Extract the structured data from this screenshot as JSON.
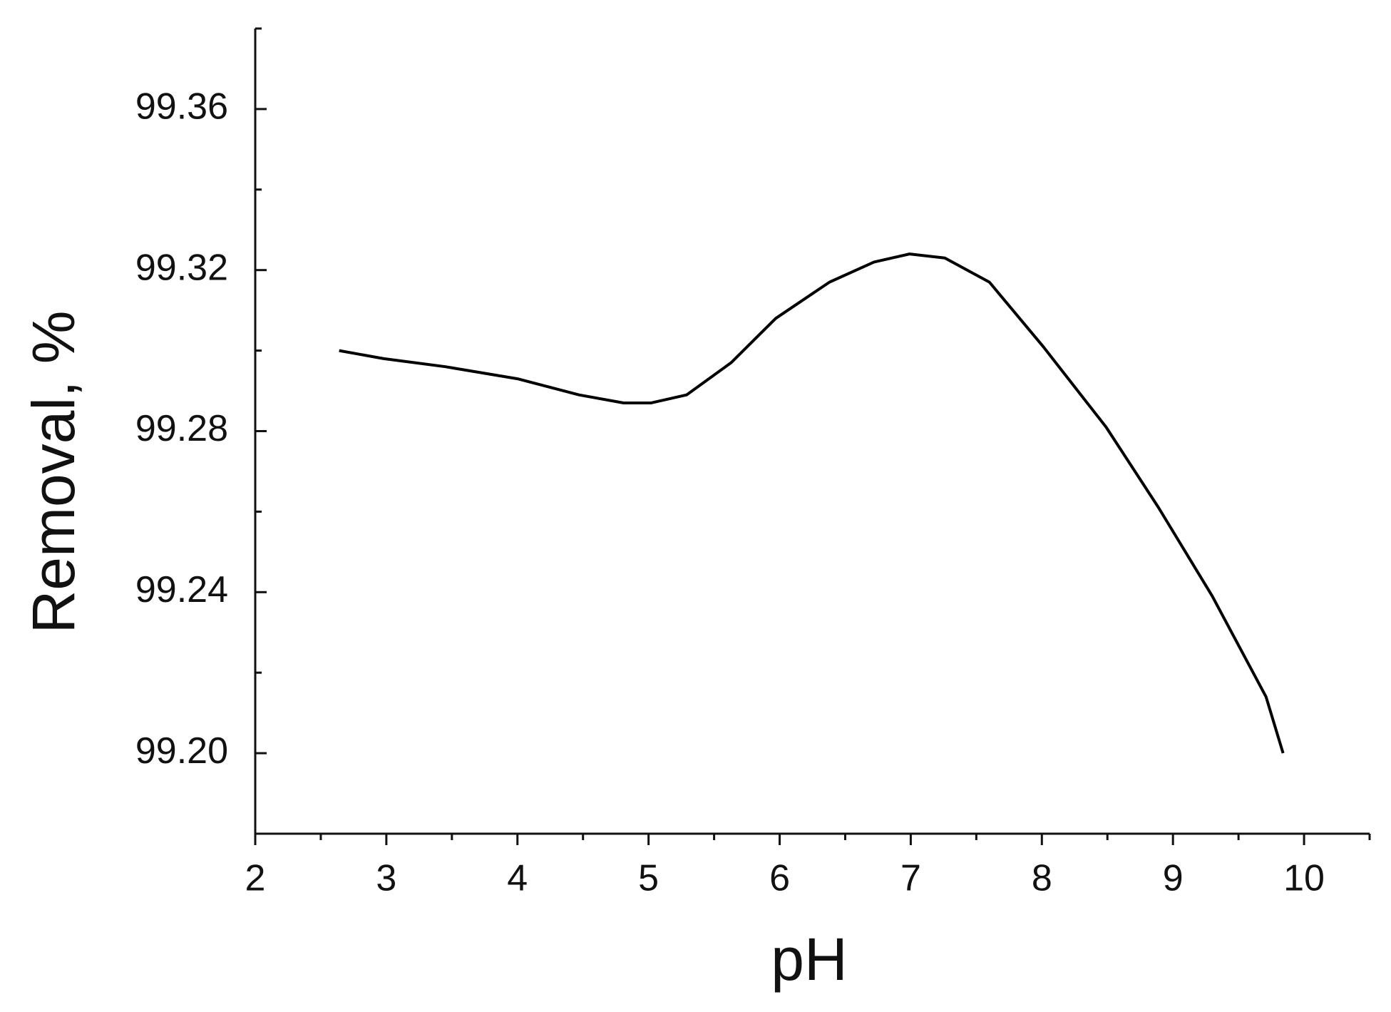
{
  "chart_data": {
    "type": "line",
    "x_label": "pH",
    "y_label": "Removal, %",
    "xlim": [
      2,
      10.5
    ],
    "ylim": [
      99.18,
      99.38
    ],
    "xticks": [
      2,
      3,
      4,
      5,
      6,
      7,
      8,
      9,
      10
    ],
    "yticks": [
      {
        "value": 99.2,
        "label": "99.20"
      },
      99.24,
      99.28,
      99.32,
      99.36
    ],
    "xminorticks": [
      2.5,
      3.5,
      4.5,
      5.5,
      6.5,
      7.5,
      8.5,
      9.5,
      10.5
    ],
    "yminorticks": [
      99.18,
      99.22,
      99.26,
      99.3,
      99.34,
      99.38
    ],
    "grid": false,
    "series": [
      {
        "color": "#000000",
        "x": [
          2.64,
          2.98,
          3.45,
          4.0,
          4.47,
          4.81,
          5.02,
          5.29,
          5.63,
          5.97,
          6.38,
          6.72,
          6.99,
          7.26,
          7.6,
          8.01,
          8.49,
          8.89,
          9.3,
          9.71,
          9.84
        ],
        "values": [
          99.3,
          99.298,
          99.296,
          99.293,
          99.289,
          99.287,
          99.287,
          99.289,
          99.297,
          99.308,
          99.317,
          99.322,
          99.324,
          99.323,
          99.317,
          99.301,
          99.281,
          99.261,
          99.239,
          99.214,
          99.2
        ]
      }
    ]
  }
}
